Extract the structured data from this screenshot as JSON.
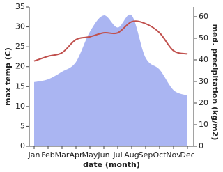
{
  "chart_data": {
    "type": "line-area",
    "categories": [
      "Jan",
      "Feb",
      "Mar",
      "Apr",
      "May",
      "Jun",
      "Jul",
      "Aug",
      "Sep",
      "Oct",
      "Nov",
      "Dec"
    ],
    "x_label": "date (month)",
    "y_label": "max temp (C)",
    "y2_label": "med. precipitation (kg/m2)",
    "ylim": [
      0,
      35
    ],
    "yticks": [
      0,
      5,
      10,
      15,
      20,
      25,
      30,
      35
    ],
    "y2lim": [
      0,
      64.5
    ],
    "y2ticks": [
      0,
      10,
      20,
      30,
      40,
      50,
      60
    ],
    "series": [
      {
        "name": "max temp",
        "color": "#c0504d",
        "values": [
          21.4,
          22.6,
          23.5,
          26.8,
          27.5,
          28.5,
          28.5,
          31.3,
          30.8,
          28.5,
          24.0,
          23.2
        ]
      },
      {
        "name": "med. precipitation",
        "color": "#aab5f2",
        "axis": "y2",
        "values": [
          29.7,
          31,
          34.5,
          39,
          53,
          60.6,
          55,
          60.6,
          41,
          35.5,
          26,
          23.5
        ]
      }
    ]
  }
}
